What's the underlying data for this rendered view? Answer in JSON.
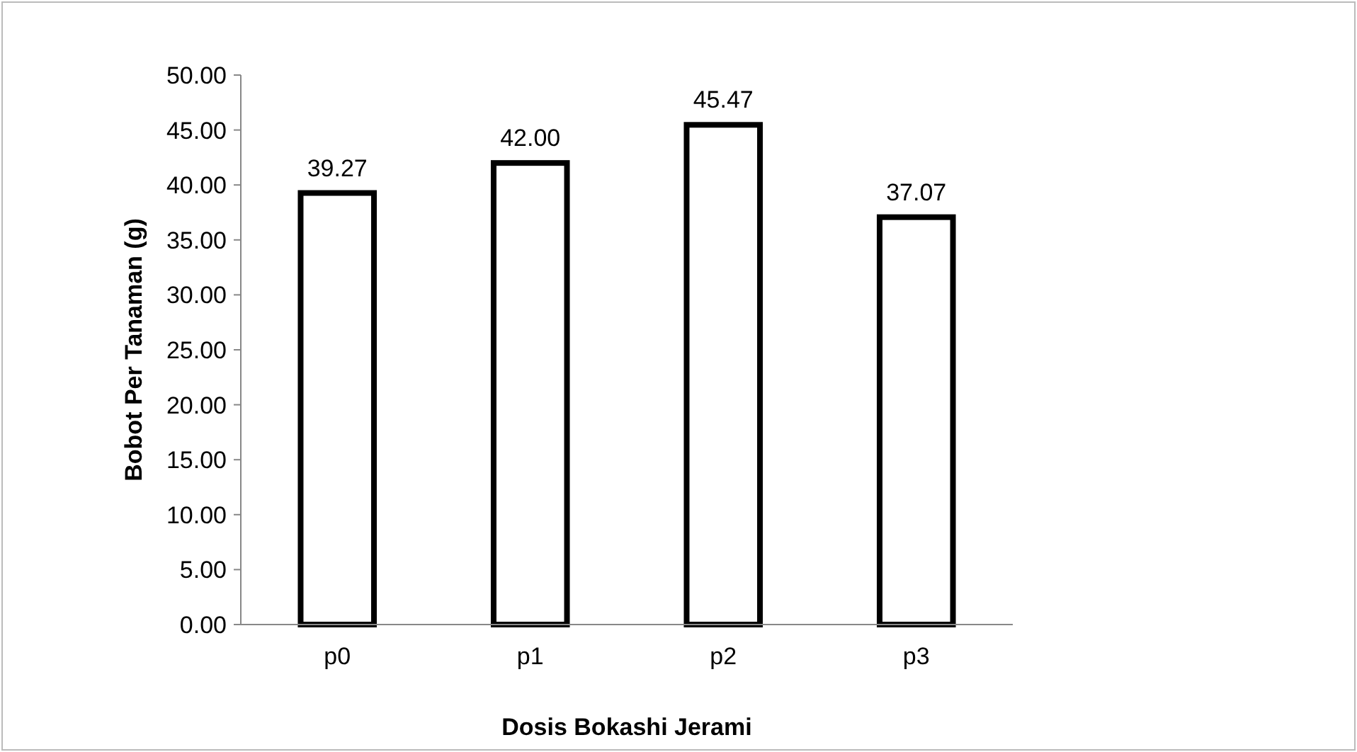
{
  "chart_data": {
    "type": "bar",
    "xlabel": "Dosis Bokashi Jerami",
    "ylabel": "Bobot Per Tanaman (g)",
    "categories": [
      "p0",
      "p1",
      "p2",
      "p3"
    ],
    "values": [
      39.27,
      42.0,
      45.47,
      37.07
    ],
    "value_labels": [
      "39.27",
      "42.00",
      "45.47",
      "37.07"
    ],
    "color": "#ffffff",
    "ylim": [
      0,
      50
    ],
    "yticks": [
      {
        "value": 0,
        "label": "0.00"
      },
      {
        "value": 5,
        "label": "5.00"
      },
      {
        "value": 10,
        "label": "10.00"
      },
      {
        "value": 15,
        "label": "15.00"
      },
      {
        "value": 20,
        "label": "20.00"
      },
      {
        "value": 25,
        "label": "25.00"
      },
      {
        "value": 30,
        "label": "30.00"
      },
      {
        "value": 35,
        "label": "35.00"
      },
      {
        "value": 40,
        "label": "40.00"
      },
      {
        "value": 45,
        "label": "45.00"
      },
      {
        "value": 50,
        "label": "50.00"
      }
    ],
    "grid": false
  }
}
